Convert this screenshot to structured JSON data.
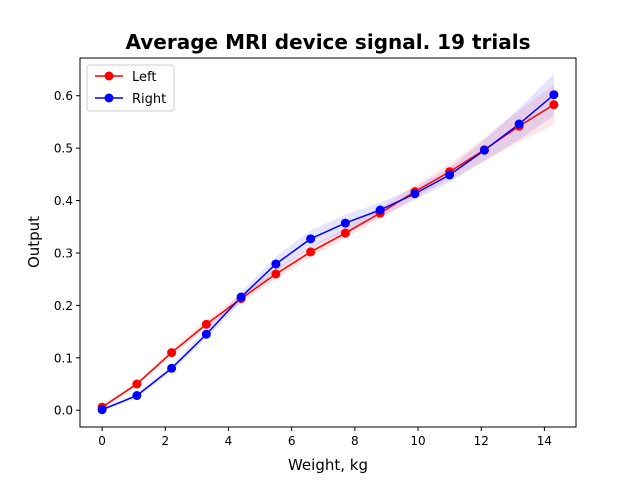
{
  "chart_data": {
    "type": "line",
    "title": "Average MRI device signal. 19 trials",
    "xlabel": "Weight, kg",
    "ylabel": "Output",
    "xlim": [
      -0.7,
      15.0
    ],
    "ylim": [
      -0.032,
      0.672
    ],
    "xticks": [
      0,
      2,
      4,
      6,
      8,
      10,
      12,
      14
    ],
    "xtick_labels": [
      "0",
      "2",
      "4",
      "6",
      "8",
      "10",
      "12",
      "14"
    ],
    "yticks": [
      0.0,
      0.1,
      0.2,
      0.3,
      0.4,
      0.5,
      0.6
    ],
    "ytick_labels": [
      "0.0",
      "0.1",
      "0.2",
      "0.3",
      "0.4",
      "0.5",
      "0.6"
    ],
    "grid": false,
    "legend_position": "top-left",
    "series": [
      {
        "name": "Left",
        "color": "#ff0000",
        "band_color": "#ff0000",
        "x": [
          0,
          1.1,
          2.2,
          3.3,
          4.4,
          5.5,
          6.6,
          7.7,
          8.8,
          9.9,
          11.0,
          12.1,
          13.2,
          14.3
        ],
        "y": [
          0.006,
          0.05,
          0.11,
          0.164,
          0.213,
          0.26,
          0.302,
          0.338,
          0.376,
          0.417,
          0.455,
          0.497,
          0.542,
          0.583
        ],
        "band": [
          0.004,
          0.004,
          0.006,
          0.008,
          0.008,
          0.01,
          0.01,
          0.01,
          0.01,
          0.012,
          0.015,
          0.022,
          0.03,
          0.038
        ]
      },
      {
        "name": "Right",
        "color": "#0000ff",
        "band_color": "#0000ff",
        "x": [
          0,
          1.1,
          2.2,
          3.3,
          4.4,
          5.5,
          6.6,
          7.7,
          8.8,
          9.9,
          11.0,
          12.1,
          13.2,
          14.3
        ],
        "y": [
          0.001,
          0.028,
          0.08,
          0.145,
          0.216,
          0.279,
          0.327,
          0.357,
          0.382,
          0.413,
          0.449,
          0.496,
          0.546,
          0.602
        ],
        "band": [
          0.003,
          0.004,
          0.006,
          0.008,
          0.01,
          0.014,
          0.016,
          0.016,
          0.014,
          0.012,
          0.014,
          0.02,
          0.03,
          0.04
        ]
      }
    ]
  }
}
